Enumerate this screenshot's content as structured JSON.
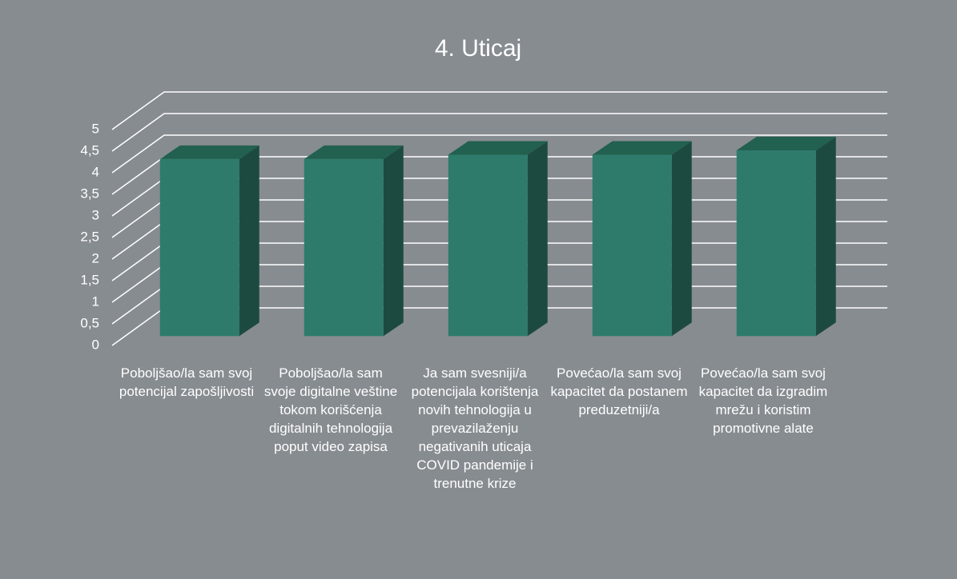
{
  "chart_data": {
    "type": "bar3d",
    "title": "4. Uticaj",
    "categories": [
      "Poboljšao/la sam svoj potencijal zapošljivosti",
      "Poboljšao/la sam svoje digitalne veštine tokom korišćenja digitalnih tehnologija poput video zapisa",
      "Ja sam svesniji/a potencijala korištenja novih tehnologija u prevazilaženju negativanih uticaja COVID pandemije i trenutne krize",
      "Povećao/la sam svoj kapacitet da postanem preduzetniji/a",
      "Povećao/la sam svoj kapacitet da izgradim mrežu i koristim promotivne alate"
    ],
    "values": [
      4.1,
      4.1,
      4.2,
      4.2,
      4.3
    ],
    "color": "#2e7b6b",
    "ylim": [
      0,
      5
    ],
    "yticks": [
      0,
      {
        "value": 0.5,
        "label": "0,5"
      },
      1,
      {
        "value": 1.5,
        "label": "1,5"
      },
      2,
      {
        "value": 2.5,
        "label": "2,5"
      },
      3,
      {
        "value": 3.5,
        "label": "3,5"
      },
      4,
      {
        "value": 4.5,
        "label": "4,5"
      },
      5
    ],
    "grid": true
  }
}
